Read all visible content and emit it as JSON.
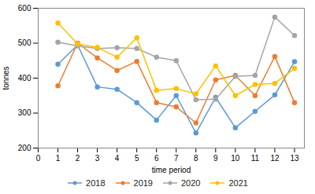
{
  "chart_data": {
    "type": "line",
    "xlabel": "time period",
    "ylabel": "tonnes",
    "x": [
      1,
      2,
      3,
      4,
      5,
      6,
      7,
      8,
      9,
      10,
      11,
      12,
      13
    ],
    "series": [
      {
        "name": "2018",
        "color": "#5b9bd5",
        "marker": "circle",
        "values": [
          440,
          495,
          375,
          368,
          330,
          280,
          350,
          243,
          345,
          258,
          305,
          352,
          447
        ]
      },
      {
        "name": "2019",
        "color": "#ed7d31",
        "marker": "circle",
        "values": [
          378,
          500,
          458,
          422,
          448,
          330,
          318,
          272,
          395,
          408,
          350,
          462,
          330
        ]
      },
      {
        "name": "2020",
        "color": "#a5a5a5",
        "marker": "circle",
        "values": [
          503,
          492,
          485,
          487,
          485,
          460,
          450,
          338,
          340,
          405,
          408,
          575,
          522
        ]
      },
      {
        "name": "2021",
        "color": "#ffc000",
        "marker": "circle",
        "values": [
          558,
          498,
          488,
          460,
          515,
          365,
          370,
          355,
          435,
          350,
          382,
          385,
          428
        ]
      }
    ],
    "xlim": [
      0,
      13.5
    ],
    "ylim": [
      200,
      600
    ],
    "xticks": [
      0,
      1,
      2,
      3,
      4,
      5,
      6,
      7,
      8,
      9,
      10,
      11,
      12,
      13
    ],
    "yticks": [
      200,
      300,
      400,
      500,
      600
    ],
    "grid": false,
    "legend": "bottom"
  }
}
